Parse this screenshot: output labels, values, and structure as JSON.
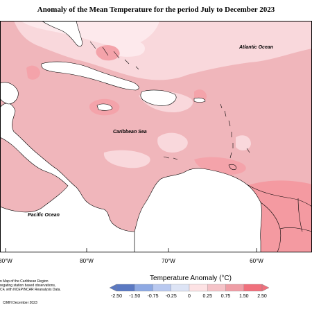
{
  "title": "Anomaly of the Mean Temperature for the period July to December 2023",
  "labels": {
    "atlantic": "Atlantic Ocean",
    "caribbean": "Caribbean Sea",
    "pacific": "Pacific Ocean"
  },
  "longitudes": [
    "80°W",
    "80°W",
    "70°W",
    "60°W"
  ],
  "footnote": [
    "n Map of the Caribbean Region",
    "regating station based observations,",
    "CF, with NCEP/NCAR Reanalysis Data."
  ],
  "copyright": "CIMH December 2023",
  "legend": {
    "title": "Temperature Anomaly (°C)",
    "ticks": [
      "-2.50",
      "-1.50",
      "-0.75",
      "-0.25",
      "0",
      "0.25",
      "0.75",
      "1.50",
      "2.50"
    ],
    "colors": [
      "#5b79c2",
      "#8ea9e3",
      "#b9c9f0",
      "#dde4f5",
      "#ffffff",
      "#fde2e4",
      "#f5c3c8",
      "#ef9ea6",
      "#f0707c"
    ]
  },
  "colors": {
    "base_anomaly": "#f0b6bb",
    "light_anomaly": "#f9d8dc",
    "strong_anomaly": "#f49aa1",
    "very_light": "#fde9ec",
    "land": "#ffffff"
  }
}
